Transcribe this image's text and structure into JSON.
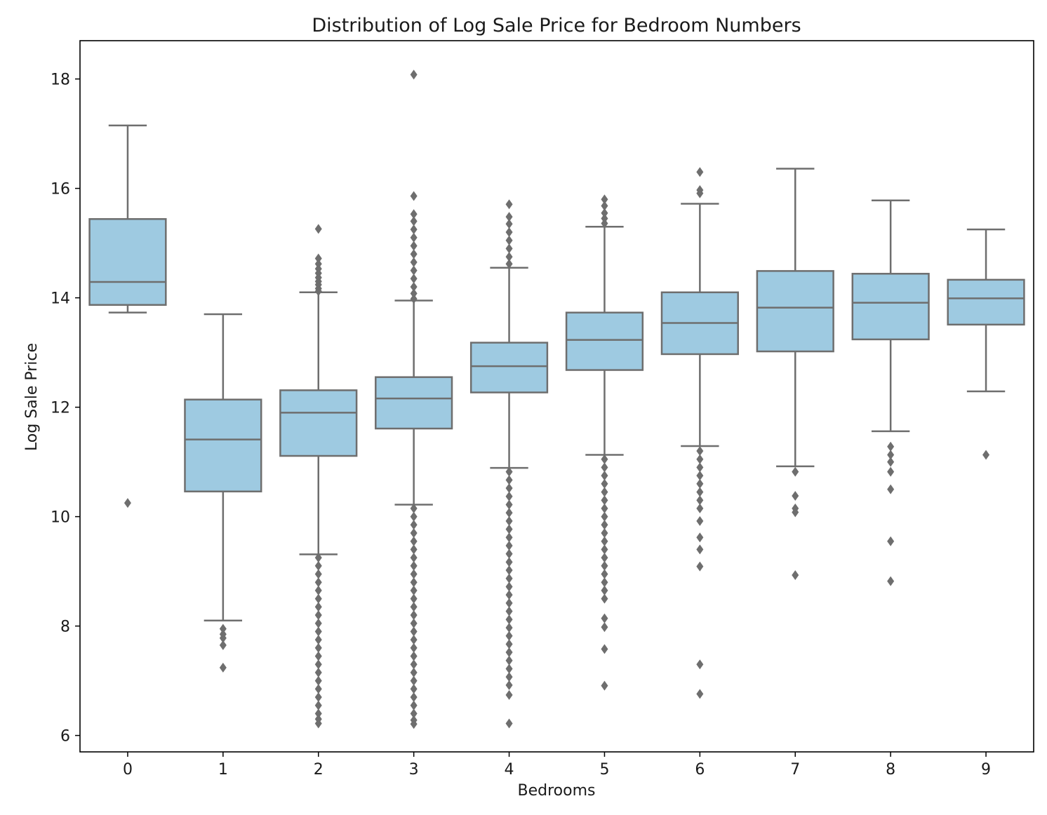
{
  "chart_data": {
    "type": "box",
    "title": "Distribution of Log Sale Price for Bedroom Numbers",
    "xlabel": "Bedrooms",
    "ylabel": "Log Sale Price",
    "ylim": [
      5.7,
      18.7
    ],
    "yticks": [
      6,
      8,
      10,
      12,
      14,
      16,
      18
    ],
    "categories": [
      "0",
      "1",
      "2",
      "3",
      "4",
      "5",
      "6",
      "7",
      "8",
      "9"
    ],
    "grid": false,
    "colors": {
      "box_fill": "#9ecae1",
      "line": "#6e6e6e",
      "frame": "#000000"
    },
    "boxes": [
      {
        "category": "0",
        "whisker_low": 13.73,
        "q1": 13.87,
        "median": 14.29,
        "q3": 15.44,
        "whisker_high": 17.15,
        "outliers": [
          10.25
        ]
      },
      {
        "category": "1",
        "whisker_low": 8.1,
        "q1": 10.46,
        "median": 11.41,
        "q3": 12.14,
        "whisker_high": 13.7,
        "outliers": [
          7.95,
          7.85,
          7.78,
          7.65,
          7.24
        ]
      },
      {
        "category": "2",
        "whisker_low": 9.31,
        "q1": 11.11,
        "median": 11.9,
        "q3": 12.31,
        "whisker_high": 14.1,
        "outliers": [
          15.26,
          14.72,
          14.62,
          14.53,
          14.45,
          14.37,
          14.3,
          14.24,
          14.17,
          14.12,
          9.25,
          9.1,
          8.95,
          8.8,
          8.65,
          8.5,
          8.35,
          8.2,
          8.05,
          7.9,
          7.75,
          7.6,
          7.45,
          7.3,
          7.15,
          7.0,
          6.85,
          6.7,
          6.55,
          6.4,
          6.3,
          6.22
        ]
      },
      {
        "category": "3",
        "whisker_low": 10.22,
        "q1": 11.61,
        "median": 12.16,
        "q3": 12.55,
        "whisker_high": 13.95,
        "outliers": [
          18.08,
          15.86,
          15.53,
          15.4,
          15.25,
          15.1,
          14.95,
          14.8,
          14.65,
          14.5,
          14.35,
          14.2,
          14.08,
          13.98,
          10.15,
          10.0,
          9.85,
          9.7,
          9.55,
          9.4,
          9.25,
          9.1,
          8.95,
          8.8,
          8.65,
          8.5,
          8.35,
          8.2,
          8.05,
          7.9,
          7.75,
          7.6,
          7.45,
          7.3,
          7.15,
          7.0,
          6.85,
          6.7,
          6.55,
          6.4,
          6.28,
          6.21
        ]
      },
      {
        "category": "4",
        "whisker_low": 10.89,
        "q1": 12.27,
        "median": 12.75,
        "q3": 13.18,
        "whisker_high": 14.55,
        "outliers": [
          15.71,
          15.48,
          15.35,
          15.2,
          15.05,
          14.9,
          14.75,
          14.62,
          10.82,
          10.67,
          10.52,
          10.37,
          10.22,
          10.07,
          9.92,
          9.77,
          9.62,
          9.47,
          9.32,
          9.17,
          9.02,
          8.87,
          8.72,
          8.57,
          8.42,
          8.27,
          8.12,
          7.97,
          7.82,
          7.67,
          7.52,
          7.37,
          7.22,
          7.07,
          6.92,
          6.74,
          6.22
        ]
      },
      {
        "category": "5",
        "whisker_low": 11.13,
        "q1": 12.68,
        "median": 13.23,
        "q3": 13.73,
        "whisker_high": 15.3,
        "outliers": [
          15.8,
          15.68,
          15.55,
          15.45,
          15.36,
          11.05,
          10.9,
          10.75,
          10.6,
          10.45,
          10.3,
          10.15,
          10.0,
          9.85,
          9.7,
          9.55,
          9.4,
          9.25,
          9.1,
          8.95,
          8.8,
          8.65,
          8.5,
          8.14,
          7.98,
          7.58,
          6.91
        ]
      },
      {
        "category": "6",
        "whisker_low": 11.29,
        "q1": 12.97,
        "median": 13.54,
        "q3": 14.1,
        "whisker_high": 15.72,
        "outliers": [
          16.3,
          15.97,
          15.91,
          11.2,
          11.05,
          10.9,
          10.75,
          10.6,
          10.45,
          10.3,
          10.15,
          9.92,
          9.62,
          9.4,
          9.09,
          7.3,
          6.76
        ]
      },
      {
        "category": "7",
        "whisker_low": 10.92,
        "q1": 13.02,
        "median": 13.82,
        "q3": 14.49,
        "whisker_high": 16.36,
        "outliers": [
          10.82,
          10.38,
          10.15,
          10.08,
          8.93
        ]
      },
      {
        "category": "8",
        "whisker_low": 11.56,
        "q1": 13.24,
        "median": 13.91,
        "q3": 14.44,
        "whisker_high": 15.78,
        "outliers": [
          11.28,
          11.13,
          11.0,
          10.82,
          10.5,
          9.55,
          8.82
        ]
      },
      {
        "category": "9",
        "whisker_low": 12.29,
        "q1": 13.51,
        "median": 13.99,
        "q3": 14.33,
        "whisker_high": 15.25,
        "outliers": [
          11.13
        ]
      }
    ]
  }
}
